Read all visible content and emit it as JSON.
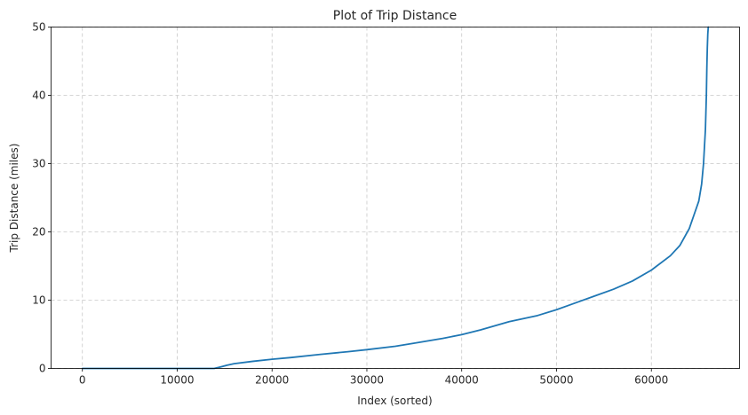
{
  "chart_data": {
    "type": "line",
    "title": "Plot of Trip Distance",
    "xlabel": "Index (sorted)",
    "ylabel": "Trip Distance (miles)",
    "xlim": [
      -3300,
      69300
    ],
    "ylim": [
      0,
      50
    ],
    "xticks": [
      0,
      10000,
      20000,
      30000,
      40000,
      50000,
      60000
    ],
    "yticks": [
      0,
      10,
      20,
      30,
      40,
      50
    ],
    "grid": true,
    "color": "#1f77b4",
    "series": [
      {
        "x": [
          0,
          13900,
          14500,
          15200,
          16000,
          18000,
          20000,
          22000,
          25000,
          28000,
          30000,
          33000,
          35000,
          38000,
          40000,
          42000,
          45000,
          48000,
          50000,
          52000,
          54000,
          56000,
          58000,
          60000,
          62000,
          63000,
          64000,
          64500,
          65000,
          65300,
          65500,
          65700,
          65800,
          65850,
          65900,
          65950,
          66000
        ],
        "y": [
          0,
          0,
          0.2,
          0.45,
          0.7,
          1.05,
          1.35,
          1.6,
          2.05,
          2.45,
          2.75,
          3.25,
          3.7,
          4.4,
          4.95,
          5.65,
          6.85,
          7.75,
          8.6,
          9.6,
          10.6,
          11.6,
          12.8,
          14.4,
          16.5,
          18.0,
          20.5,
          22.5,
          24.5,
          27.0,
          30.0,
          35.0,
          40.0,
          44.0,
          47.0,
          49.0,
          50.0
        ]
      }
    ]
  }
}
